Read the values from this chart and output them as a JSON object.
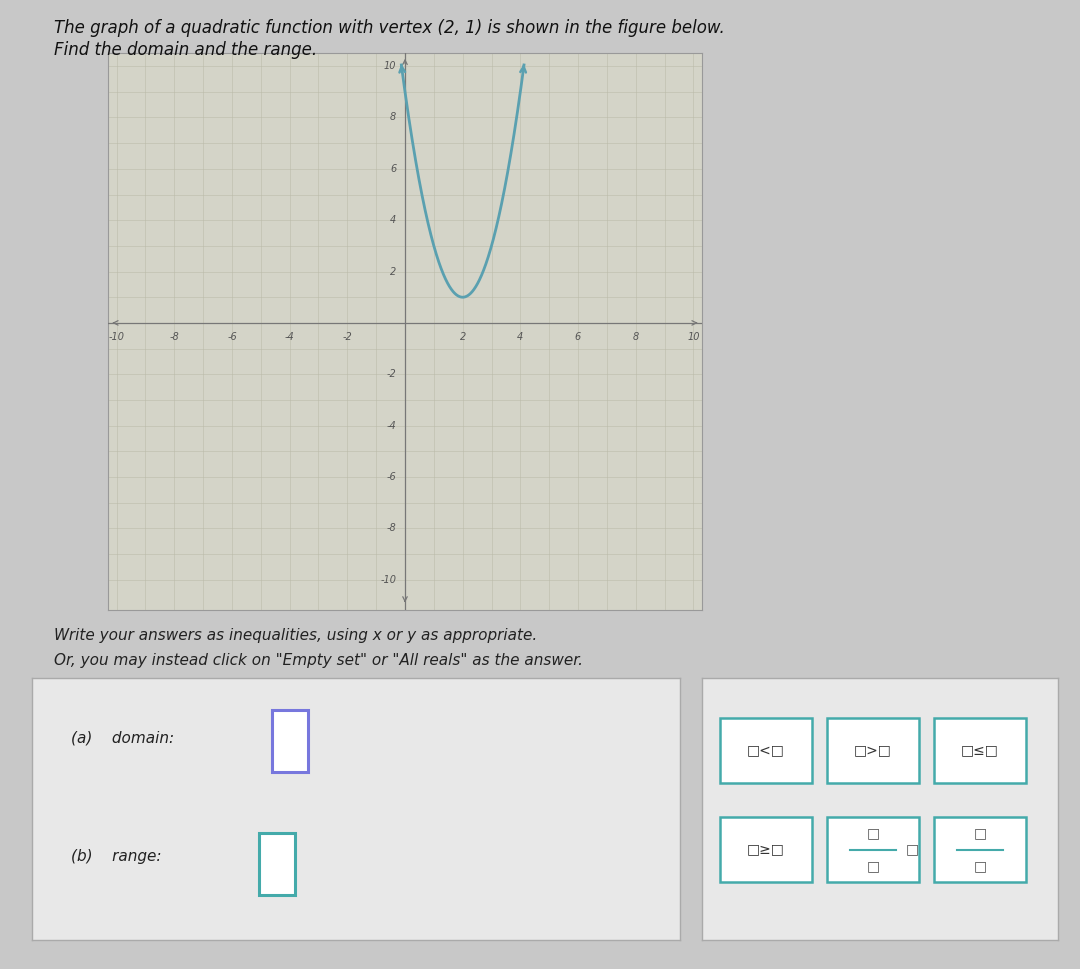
{
  "title_line1": "The graph of a quadratic function with vertex (2, 1) is shown in the figure below.",
  "title_line2": "Find the domain and the range.",
  "instructions_line1": "Write your answers as inequalities, using x or y as appropriate.",
  "instructions_line2": "Or, you may instead click on \"Empty set\" or \"All reals\" as the answer.",
  "label_a": "(a)    domain:",
  "label_b": "(b)    range:",
  "background_color": "#c8c8c8",
  "graph_bg": "#d4d4c8",
  "graph_border": "#999999",
  "curve_color": "#5aa0b0",
  "axis_color": "#777777",
  "grid_color": "#bbbbaa",
  "vertex_x": 2,
  "vertex_y": 1,
  "x_min": -10,
  "x_max": 10,
  "y_min": -10,
  "y_max": 10,
  "x_ticks": [
    -10,
    -8,
    -6,
    -4,
    -2,
    2,
    4,
    6,
    8,
    10
  ],
  "y_ticks": [
    -10,
    -8,
    -6,
    -4,
    -2,
    2,
    4,
    6,
    8,
    10
  ],
  "parabola_a": 2.0,
  "box1_color": "#7777dd",
  "box2_color": "#44aaaa",
  "button_color": "#44aaaa",
  "font_size_title": 12,
  "font_size_text": 11,
  "font_size_label": 11,
  "font_size_axis": 7,
  "panel_bg": "#e8e8e8",
  "panel_border": "#aaaaaa"
}
